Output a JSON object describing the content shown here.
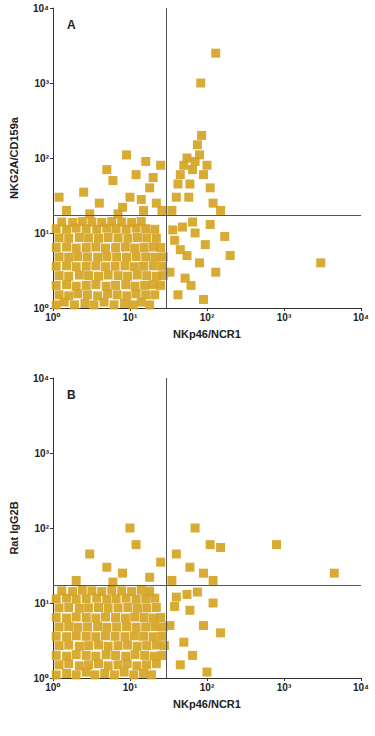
{
  "chart_data": [
    {
      "type": "scatter",
      "title": "A",
      "x_label": "NKp46/NCR1",
      "y_label": "NKG2A/CD159a",
      "log": true,
      "color": "#d4a21f",
      "marker": "square",
      "tick_labels": true,
      "xlim": [
        1,
        10000
      ],
      "ylim": [
        1,
        10000
      ],
      "xticks": [
        {
          "value": 1,
          "label": "10⁰"
        },
        {
          "value": 10,
          "label": "10¹"
        },
        {
          "value": 100,
          "label": "10²"
        },
        {
          "value": 1000,
          "label": "10³"
        },
        {
          "value": 10000,
          "label": "10⁴"
        }
      ],
      "yticks": [
        {
          "value": 1,
          "label": "10⁰"
        },
        {
          "value": 10,
          "label": "10¹"
        },
        {
          "value": 100,
          "label": "10²"
        },
        {
          "value": 1000,
          "label": "10³"
        },
        {
          "value": 10000,
          "label": "10⁴"
        }
      ],
      "gates": {
        "x": 30,
        "y": 17
      },
      "points": [
        [
          1.1,
          1.1
        ],
        [
          1.4,
          1.2
        ],
        [
          1.9,
          1.1
        ],
        [
          2.6,
          1.15
        ],
        [
          3.4,
          1.1
        ],
        [
          4.6,
          1.2
        ],
        [
          6.2,
          1.1
        ],
        [
          8.5,
          1.15
        ],
        [
          11,
          1.1
        ],
        [
          14,
          1.2
        ],
        [
          18,
          1.1
        ],
        [
          1.2,
          1.5
        ],
        [
          1.6,
          1.45
        ],
        [
          2.1,
          1.55
        ],
        [
          2.8,
          1.5
        ],
        [
          3.8,
          1.45
        ],
        [
          5.1,
          1.55
        ],
        [
          6.8,
          1.5
        ],
        [
          9.1,
          1.45
        ],
        [
          12,
          1.55
        ],
        [
          16,
          1.5
        ],
        [
          21,
          1.5
        ],
        [
          1.1,
          2
        ],
        [
          1.5,
          2.05
        ],
        [
          2,
          1.95
        ],
        [
          2.7,
          2
        ],
        [
          3.6,
          2.05
        ],
        [
          4.9,
          1.95
        ],
        [
          6.5,
          2
        ],
        [
          8.8,
          2.05
        ],
        [
          11.6,
          1.95
        ],
        [
          15.5,
          2
        ],
        [
          20,
          2.05
        ],
        [
          25,
          2
        ],
        [
          1.2,
          2.7
        ],
        [
          1.6,
          2.65
        ],
        [
          2.2,
          2.75
        ],
        [
          2.9,
          2.7
        ],
        [
          3.9,
          2.65
        ],
        [
          5.2,
          2.75
        ],
        [
          7,
          2.7
        ],
        [
          9.3,
          2.65
        ],
        [
          12.4,
          2.75
        ],
        [
          16.5,
          2.7
        ],
        [
          22,
          2.65
        ],
        [
          27,
          2.7
        ],
        [
          1.1,
          3.6
        ],
        [
          1.5,
          3.65
        ],
        [
          2,
          3.55
        ],
        [
          2.7,
          3.6
        ],
        [
          3.6,
          3.65
        ],
        [
          4.8,
          3.55
        ],
        [
          6.4,
          3.6
        ],
        [
          8.6,
          3.65
        ],
        [
          11.4,
          3.55
        ],
        [
          15,
          3.6
        ],
        [
          20,
          3.65
        ],
        [
          26,
          3.6
        ],
        [
          1.2,
          4.8
        ],
        [
          1.6,
          4.75
        ],
        [
          2.1,
          4.85
        ],
        [
          2.8,
          4.8
        ],
        [
          3.8,
          4.75
        ],
        [
          5,
          4.85
        ],
        [
          6.7,
          4.8
        ],
        [
          9,
          4.75
        ],
        [
          12,
          4.85
        ],
        [
          16,
          4.8
        ],
        [
          21,
          4.75
        ],
        [
          27,
          4.8
        ],
        [
          1.1,
          6.4
        ],
        [
          1.5,
          6.5
        ],
        [
          2,
          6.3
        ],
        [
          2.7,
          6.4
        ],
        [
          3.6,
          6.5
        ],
        [
          4.8,
          6.3
        ],
        [
          6.5,
          6.4
        ],
        [
          8.7,
          6.5
        ],
        [
          11.5,
          6.3
        ],
        [
          15.2,
          6.4
        ],
        [
          20,
          6.5
        ],
        [
          25,
          6.4
        ],
        [
          1.2,
          8.6
        ],
        [
          1.6,
          8.5
        ],
        [
          2.2,
          8.7
        ],
        [
          2.9,
          8.6
        ],
        [
          3.9,
          8.5
        ],
        [
          5.2,
          8.7
        ],
        [
          7,
          8.6
        ],
        [
          9.4,
          8.5
        ],
        [
          12.5,
          8.7
        ],
        [
          16.5,
          8.6
        ],
        [
          22,
          8.5
        ],
        [
          1.1,
          11.4
        ],
        [
          1.5,
          11.2
        ],
        [
          2,
          11.6
        ],
        [
          2.7,
          11.4
        ],
        [
          3.7,
          11.2
        ],
        [
          5,
          11.6
        ],
        [
          6.6,
          11.4
        ],
        [
          8.9,
          11.2
        ],
        [
          12,
          11.6
        ],
        [
          16,
          11.4
        ],
        [
          21,
          11.2
        ],
        [
          1.3,
          14
        ],
        [
          1.8,
          13.8
        ],
        [
          2.4,
          14.2
        ],
        [
          3.2,
          14
        ],
        [
          4.3,
          13.8
        ],
        [
          5.8,
          14.2
        ],
        [
          7.8,
          14
        ],
        [
          10.5,
          13.8
        ],
        [
          14,
          14.2
        ],
        [
          1.5,
          20
        ],
        [
          2.5,
          35
        ],
        [
          4,
          25
        ],
        [
          6,
          50
        ],
        [
          8,
          22
        ],
        [
          10,
          30
        ],
        [
          12,
          60
        ],
        [
          15,
          20
        ],
        [
          18,
          40
        ],
        [
          22,
          25
        ],
        [
          25,
          80
        ],
        [
          3,
          18
        ],
        [
          5,
          70
        ],
        [
          9,
          110
        ],
        [
          14,
          28
        ],
        [
          20,
          55
        ],
        [
          7,
          18
        ],
        [
          1.2,
          30
        ],
        [
          26,
          20
        ],
        [
          16,
          90
        ],
        [
          35,
          20
        ],
        [
          40,
          30
        ],
        [
          45,
          60
        ],
        [
          50,
          80
        ],
        [
          55,
          100
        ],
        [
          60,
          45
        ],
        [
          65,
          70
        ],
        [
          70,
          90
        ],
        [
          80,
          110
        ],
        [
          90,
          60
        ],
        [
          100,
          80
        ],
        [
          110,
          40
        ],
        [
          120,
          25
        ],
        [
          150,
          20
        ],
        [
          75,
          150
        ],
        [
          58,
          30
        ],
        [
          42,
          45
        ],
        [
          85,
          200
        ],
        [
          83,
          1000
        ],
        [
          130,
          2500
        ],
        [
          33,
          3
        ],
        [
          38,
          8
        ],
        [
          42,
          1.5
        ],
        [
          48,
          12
        ],
        [
          55,
          5
        ],
        [
          62,
          2
        ],
        [
          70,
          10
        ],
        [
          80,
          4
        ],
        [
          95,
          7
        ],
        [
          110,
          13
        ],
        [
          130,
          3
        ],
        [
          170,
          9
        ],
        [
          200,
          5
        ],
        [
          36,
          11
        ],
        [
          45,
          6
        ],
        [
          52,
          2.5
        ],
        [
          65,
          14
        ],
        [
          90,
          1.3
        ],
        [
          3000,
          4
        ]
      ]
    },
    {
      "type": "scatter",
      "title": "B",
      "x_label": "NKp46/NCR1",
      "y_label": "Rat IgG2B",
      "log": true,
      "color": "#d4a21f",
      "marker": "square",
      "tick_labels": true,
      "xlim": [
        1,
        10000
      ],
      "ylim": [
        1,
        10000
      ],
      "xticks": [
        {
          "value": 1,
          "label": "10⁰"
        },
        {
          "value": 10,
          "label": "10¹"
        },
        {
          "value": 100,
          "label": "10²"
        },
        {
          "value": 1000,
          "label": "10³"
        },
        {
          "value": 10000,
          "label": "10⁴"
        }
      ],
      "yticks": [
        {
          "value": 1,
          "label": "10⁰"
        },
        {
          "value": 10,
          "label": "10¹"
        },
        {
          "value": 100,
          "label": "10²"
        },
        {
          "value": 1000,
          "label": "10³"
        },
        {
          "value": 10000,
          "label": "10⁴"
        }
      ],
      "gates": {
        "x": 30,
        "y": 17
      },
      "points": [
        [
          1.1,
          1.1
        ],
        [
          1.5,
          1.15
        ],
        [
          2,
          1.1
        ],
        [
          2.7,
          1.2
        ],
        [
          3.5,
          1.1
        ],
        [
          4.7,
          1.15
        ],
        [
          6.3,
          1.1
        ],
        [
          8.4,
          1.2
        ],
        [
          11.2,
          1.1
        ],
        [
          15,
          1.15
        ],
        [
          19,
          1.1
        ],
        [
          1.2,
          1.5
        ],
        [
          1.6,
          1.55
        ],
        [
          2.2,
          1.45
        ],
        [
          2.9,
          1.5
        ],
        [
          3.9,
          1.55
        ],
        [
          5.2,
          1.45
        ],
        [
          7,
          1.5
        ],
        [
          9.2,
          1.55
        ],
        [
          12.3,
          1.45
        ],
        [
          16.4,
          1.5
        ],
        [
          22,
          1.55
        ],
        [
          1.1,
          2
        ],
        [
          1.5,
          1.95
        ],
        [
          2,
          2.05
        ],
        [
          2.7,
          2
        ],
        [
          3.6,
          1.95
        ],
        [
          4.9,
          2.05
        ],
        [
          6.5,
          2
        ],
        [
          8.8,
          1.95
        ],
        [
          11.6,
          2.05
        ],
        [
          15.5,
          2
        ],
        [
          20.5,
          1.95
        ],
        [
          26,
          2
        ],
        [
          1.2,
          2.7
        ],
        [
          1.6,
          2.75
        ],
        [
          2.2,
          2.65
        ],
        [
          2.9,
          2.7
        ],
        [
          3.9,
          2.75
        ],
        [
          5.2,
          2.65
        ],
        [
          7,
          2.7
        ],
        [
          9.3,
          2.75
        ],
        [
          12.4,
          2.65
        ],
        [
          16.5,
          2.7
        ],
        [
          22,
          2.75
        ],
        [
          28,
          2.7
        ],
        [
          1.1,
          3.6
        ],
        [
          1.5,
          3.55
        ],
        [
          2,
          3.65
        ],
        [
          2.7,
          3.6
        ],
        [
          3.6,
          3.55
        ],
        [
          4.8,
          3.65
        ],
        [
          6.4,
          3.6
        ],
        [
          8.6,
          3.55
        ],
        [
          11.4,
          3.65
        ],
        [
          15,
          3.6
        ],
        [
          20,
          3.55
        ],
        [
          26,
          3.6
        ],
        [
          1.2,
          4.8
        ],
        [
          1.6,
          4.85
        ],
        [
          2.1,
          4.75
        ],
        [
          2.8,
          4.8
        ],
        [
          3.8,
          4.85
        ],
        [
          5,
          4.75
        ],
        [
          6.7,
          4.8
        ],
        [
          9,
          4.85
        ],
        [
          12,
          4.75
        ],
        [
          16,
          4.8
        ],
        [
          21,
          4.85
        ],
        [
          27,
          4.8
        ],
        [
          1.1,
          6.4
        ],
        [
          1.5,
          6.3
        ],
        [
          2,
          6.5
        ],
        [
          2.7,
          6.4
        ],
        [
          3.6,
          6.3
        ],
        [
          4.8,
          6.5
        ],
        [
          6.5,
          6.4
        ],
        [
          8.7,
          6.3
        ],
        [
          11.5,
          6.5
        ],
        [
          15.2,
          6.4
        ],
        [
          20,
          6.3
        ],
        [
          25,
          6.4
        ],
        [
          1.2,
          8.6
        ],
        [
          1.6,
          8.7
        ],
        [
          2.2,
          8.5
        ],
        [
          2.9,
          8.6
        ],
        [
          3.9,
          8.7
        ],
        [
          5.2,
          8.5
        ],
        [
          7,
          8.6
        ],
        [
          9.4,
          8.7
        ],
        [
          12.5,
          8.5
        ],
        [
          16.5,
          8.6
        ],
        [
          22,
          8.7
        ],
        [
          1.1,
          11.4
        ],
        [
          1.5,
          11.6
        ],
        [
          2,
          11.2
        ],
        [
          2.7,
          11.4
        ],
        [
          3.7,
          11.6
        ],
        [
          5,
          11.2
        ],
        [
          6.6,
          11.4
        ],
        [
          8.9,
          11.6
        ],
        [
          12,
          11.2
        ],
        [
          16,
          11.4
        ],
        [
          21,
          11.6
        ],
        [
          1.3,
          14.5
        ],
        [
          1.8,
          14.2
        ],
        [
          2.4,
          14.8
        ],
        [
          3.2,
          14.5
        ],
        [
          4.3,
          14.2
        ],
        [
          5.8,
          14.8
        ],
        [
          7.8,
          14.5
        ],
        [
          10.5,
          14.2
        ],
        [
          14,
          14.8
        ],
        [
          18,
          14.4
        ],
        [
          2,
          20
        ],
        [
          5,
          30
        ],
        [
          8,
          25
        ],
        [
          12,
          60
        ],
        [
          3,
          45
        ],
        [
          18,
          22
        ],
        [
          10,
          100
        ],
        [
          25,
          35
        ],
        [
          6,
          19
        ],
        [
          35,
          20
        ],
        [
          40,
          45
        ],
        [
          60,
          30
        ],
        [
          90,
          25
        ],
        [
          110,
          60
        ],
        [
          150,
          55
        ],
        [
          120,
          20
        ],
        [
          800,
          60
        ],
        [
          4500,
          25
        ],
        [
          70,
          100
        ],
        [
          33,
          5
        ],
        [
          40,
          12
        ],
        [
          50,
          3
        ],
        [
          60,
          8
        ],
        [
          75,
          14
        ],
        [
          90,
          5
        ],
        [
          120,
          10
        ],
        [
          45,
          1.5
        ],
        [
          65,
          2
        ],
        [
          150,
          4
        ],
        [
          100,
          1.2
        ],
        [
          38,
          9
        ],
        [
          55,
          13
        ]
      ]
    }
  ]
}
